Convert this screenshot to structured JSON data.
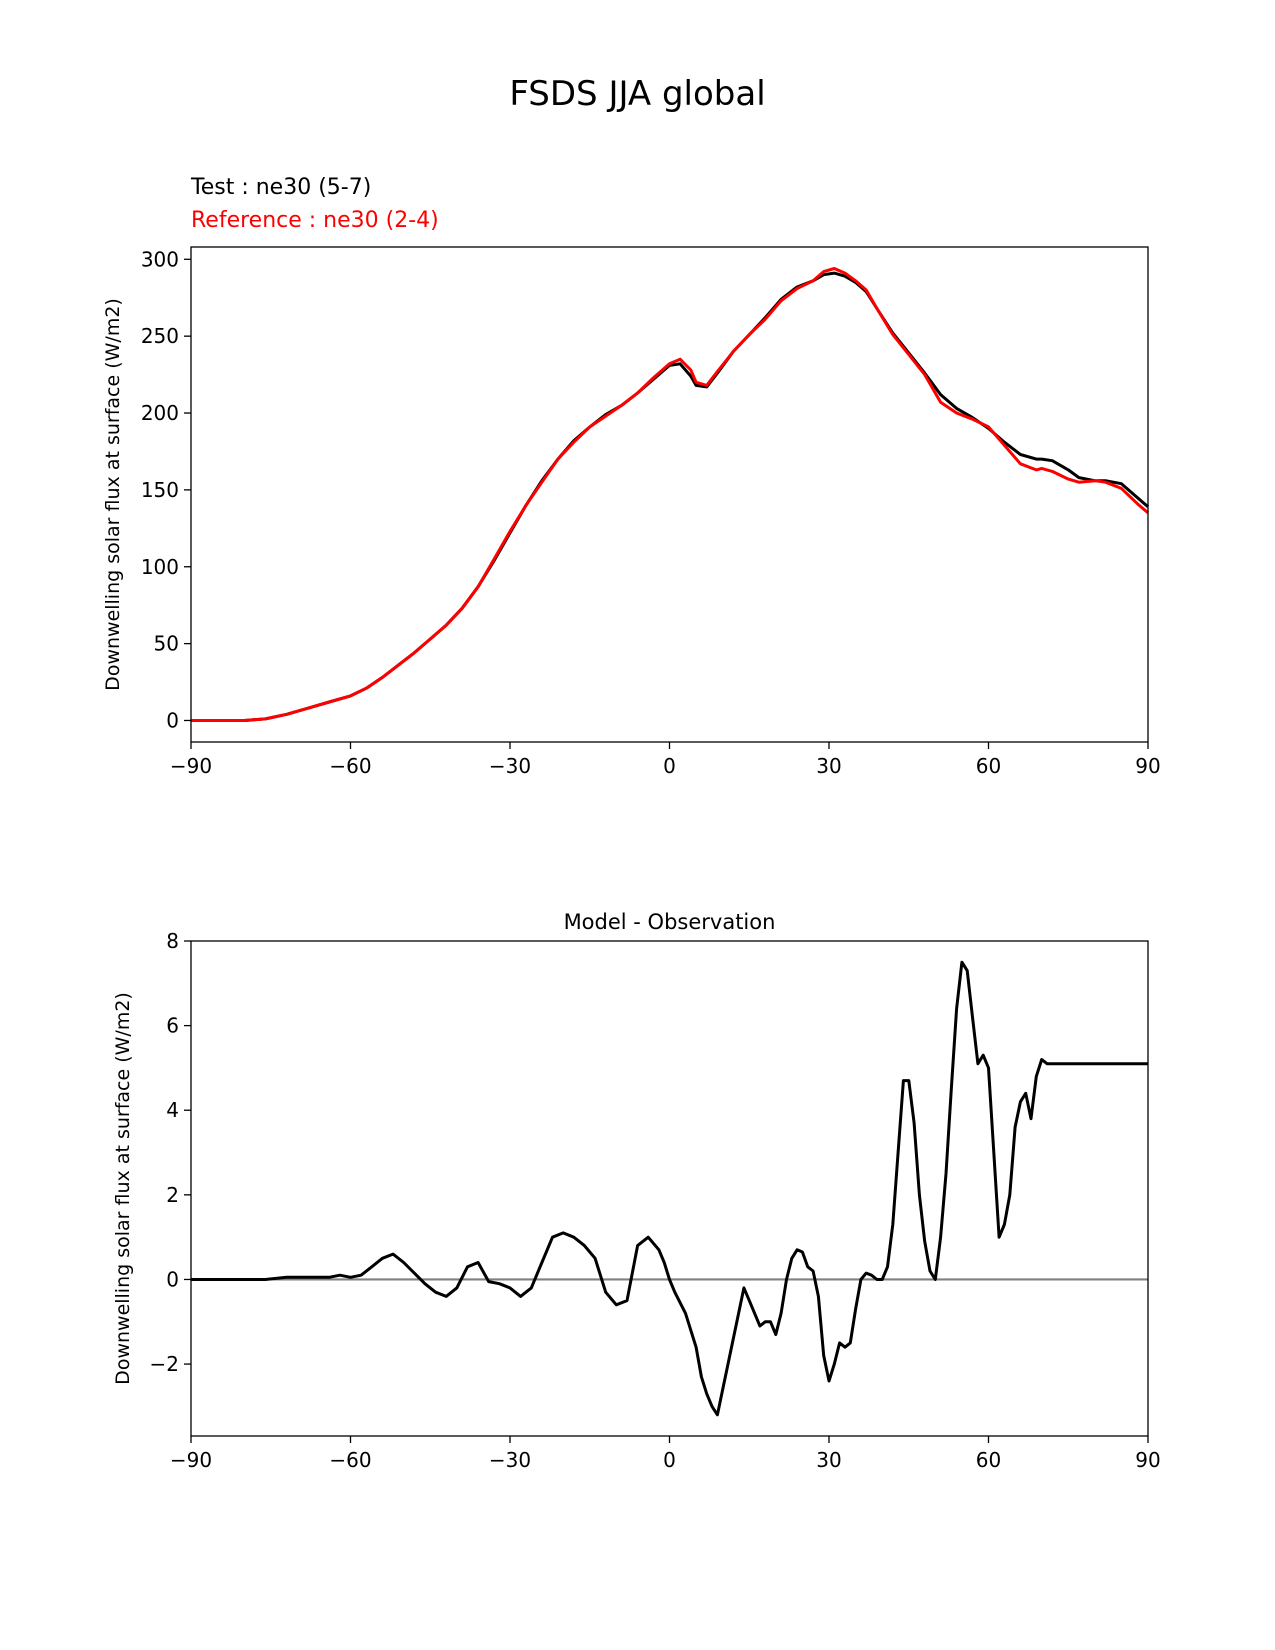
{
  "figure_title": "FSDS JJA global",
  "chart_data": [
    {
      "type": "line",
      "title": "",
      "legend_text": [
        "Test : ne30 (5-7)",
        "Reference : ne30 (2-4)"
      ],
      "xlabel": "",
      "ylabel": "Downwelling solar flux at surface (W/m2)",
      "xlim": [
        -90,
        90
      ],
      "ylim": [
        -14,
        308
      ],
      "xticks": [
        -90,
        -60,
        -30,
        0,
        30,
        60,
        90
      ],
      "xtick_labels": [
        "−90",
        "−60",
        "−30",
        "0",
        "30",
        "60",
        "90"
      ],
      "yticks": [
        0,
        50,
        100,
        150,
        200,
        250,
        300
      ],
      "ytick_labels": [
        "0",
        "50",
        "100",
        "150",
        "200",
        "250",
        "300"
      ],
      "grid": false,
      "x": [
        -90,
        -85,
        -80,
        -76,
        -72,
        -68,
        -64,
        -60,
        -57,
        -54,
        -51,
        -48,
        -45,
        -42,
        -39,
        -36,
        -33,
        -30,
        -27,
        -24,
        -21,
        -18,
        -15,
        -12,
        -9,
        -6,
        -3,
        0,
        2,
        4,
        5,
        7,
        9,
        12,
        15,
        18,
        21,
        24,
        27,
        29,
        31,
        33,
        35,
        37,
        39,
        42,
        45,
        48,
        51,
        54,
        57,
        60,
        63,
        66,
        69,
        70,
        72,
        75,
        77,
        80,
        82,
        85,
        88,
        90
      ],
      "series": [
        {
          "name": "Test : ne30 (5-7)",
          "color": "#000000",
          "values": [
            0,
            0,
            0,
            1,
            4,
            8,
            12,
            16,
            21,
            28,
            36,
            44,
            53,
            62,
            73,
            87,
            104,
            122,
            140,
            156,
            170,
            182,
            191,
            199,
            205,
            213,
            222,
            231,
            232,
            224,
            218,
            217,
            226,
            240,
            251,
            262,
            274,
            282,
            286,
            290,
            291,
            289,
            285,
            279,
            268,
            252,
            239,
            226,
            212,
            203,
            197,
            190,
            181,
            173,
            170,
            170,
            169,
            163,
            158,
            156,
            156,
            154,
            145,
            139
          ]
        },
        {
          "name": "Reference : ne30 (2-4)",
          "color": "#ff0000",
          "values": [
            0,
            0,
            0,
            1,
            4,
            8,
            12,
            16,
            21,
            28,
            36,
            44,
            53,
            62,
            73,
            87,
            105,
            123,
            140,
            155,
            170,
            181,
            191,
            198,
            205,
            213,
            223,
            232,
            235,
            228,
            220,
            218,
            227,
            240,
            251,
            261,
            273,
            281,
            286,
            292,
            294,
            291,
            286,
            280,
            268,
            251,
            238,
            225,
            207,
            200,
            196,
            191,
            179,
            167,
            163,
            164,
            162,
            157,
            155,
            156,
            155,
            151,
            141,
            135
          ]
        }
      ]
    },
    {
      "type": "line",
      "title": "Model - Observation",
      "xlabel": "",
      "ylabel": "Downwelling solar flux at surface (W/m2)",
      "xlim": [
        -90,
        90
      ],
      "ylim": [
        -3.7,
        8.0
      ],
      "xticks": [
        -90,
        -60,
        -30,
        0,
        30,
        60,
        90
      ],
      "xtick_labels": [
        "−90",
        "−60",
        "−30",
        "0",
        "30",
        "60",
        "90"
      ],
      "yticks": [
        -2,
        0,
        2,
        4,
        6,
        8
      ],
      "ytick_labels": [
        "−2",
        "0",
        "2",
        "4",
        "6",
        "8"
      ],
      "grid": false,
      "zero_line_color": "#808080",
      "x": [
        -90,
        -85,
        -80,
        -76,
        -72,
        -68,
        -66,
        -64,
        -62,
        -60,
        -58,
        -56,
        -54,
        -52,
        -50,
        -48,
        -46,
        -44,
        -42,
        -40,
        -38,
        -36,
        -34,
        -32,
        -30,
        -28,
        -26,
        -24,
        -22,
        -20,
        -18,
        -16,
        -14,
        -12,
        -10,
        -8,
        -6,
        -4,
        -2,
        -1,
        0,
        1,
        3,
        5,
        6,
        7,
        8,
        9,
        11,
        13,
        14,
        15,
        16,
        17,
        18,
        19,
        20,
        21,
        22,
        23,
        24,
        25,
        26,
        27,
        28,
        29,
        30,
        31,
        32,
        33,
        34,
        35,
        36,
        37,
        38,
        39,
        40,
        41,
        42,
        43,
        44,
        45,
        46,
        47,
        48,
        49,
        50,
        51,
        52,
        53,
        54,
        55,
        56,
        57,
        58,
        59,
        60,
        61,
        62,
        63,
        64,
        65,
        66,
        67,
        68,
        69,
        70,
        71,
        72,
        73,
        74,
        75,
        76,
        77,
        78,
        79,
        80,
        81,
        82,
        83,
        84,
        85,
        86,
        87,
        88,
        89,
        90
      ],
      "series": [
        {
          "name": "",
          "color": "#000000",
          "values": [
            0,
            0,
            0,
            0,
            0.05,
            0.05,
            0.05,
            0.05,
            0.1,
            0.05,
            0.1,
            0.3,
            0.5,
            0.6,
            0.4,
            0.15,
            -0.1,
            -0.3,
            -0.4,
            -0.2,
            0.3,
            0.4,
            -0.05,
            -0.1,
            -0.2,
            -0.4,
            -0.2,
            0.4,
            1.0,
            1.1,
            1.0,
            0.8,
            0.5,
            -0.3,
            -0.6,
            -0.5,
            0.8,
            1.0,
            0.7,
            0.4,
            0,
            -0.3,
            -0.8,
            -1.6,
            -2.3,
            -2.7,
            -3.0,
            -3.2,
            -2.0,
            -0.8,
            -0.2,
            -0.5,
            -0.8,
            -1.1,
            -1.0,
            -1.0,
            -1.3,
            -0.8,
            0.0,
            0.5,
            0.7,
            0.65,
            0.3,
            0.2,
            -0.4,
            -1.8,
            -2.4,
            -2.0,
            -1.5,
            -1.6,
            -1.5,
            -0.7,
            0.0,
            0.15,
            0.1,
            0.0,
            0.0,
            0.3,
            1.3,
            3.0,
            4.7,
            4.7,
            3.7,
            2.0,
            0.9,
            0.2,
            0.0,
            1.0,
            2.5,
            4.5,
            6.4,
            7.5,
            7.3,
            6.2,
            5.1,
            5.3,
            5.0,
            3.0,
            1.0,
            1.3,
            2.0,
            3.6,
            4.2,
            4.4,
            3.8,
            4.8,
            5.2,
            5.1,
            5.1,
            5.1,
            5.1,
            5.1,
            5.1,
            5.1,
            5.1,
            5.1,
            5.1,
            5.1,
            5.1,
            5.1,
            5.1,
            5.1,
            5.1,
            5.1,
            5.1,
            5.1,
            5.1
          ]
        }
      ]
    }
  ]
}
